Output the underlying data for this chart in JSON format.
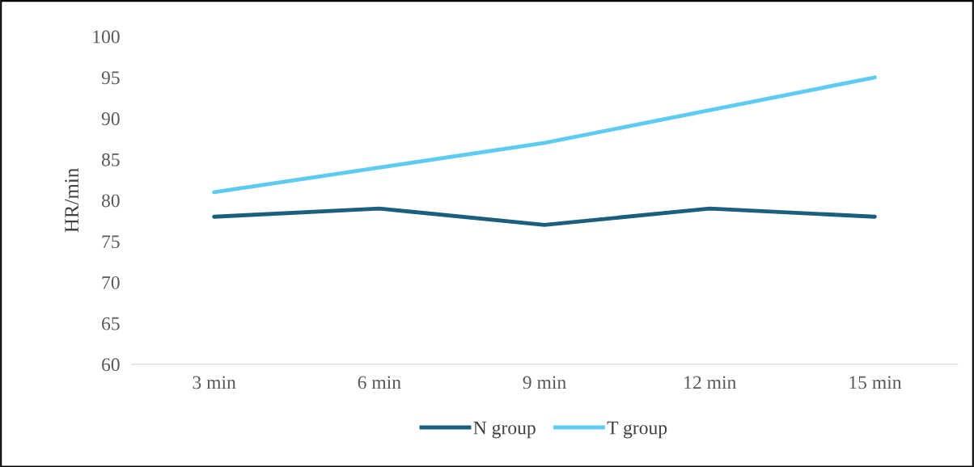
{
  "chart_data": {
    "type": "line",
    "ylabel": "HR/min",
    "categories": [
      "3 min",
      "6 min",
      "9 min",
      "12 min",
      "15 min"
    ],
    "series": [
      {
        "name": "N group",
        "color": "#1b5f7f",
        "values": [
          78,
          79,
          77,
          79,
          78
        ]
      },
      {
        "name": "T group",
        "color": "#5ecbf3",
        "values": [
          81,
          84,
          87,
          91,
          95
        ]
      }
    ],
    "ylim": [
      60,
      100
    ],
    "yticks": [
      60,
      65,
      70,
      75,
      80,
      85,
      90,
      95,
      100
    ],
    "grid": false,
    "legend": "bottom",
    "marker": "none",
    "line_style": "solid"
  }
}
